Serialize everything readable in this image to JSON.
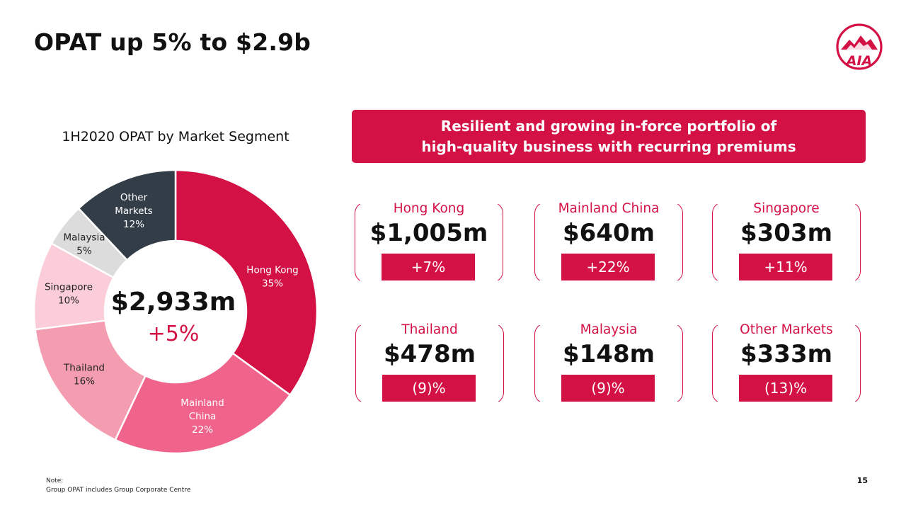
{
  "title": "OPAT up 5% to $2.9b",
  "brand": {
    "logo_text": "AIA",
    "color": "#d31145"
  },
  "chart_data": {
    "type": "pie",
    "title": "1H2020 OPAT by Market Segment",
    "center_total": "$2,933m",
    "center_growth": "+5%",
    "slices": [
      {
        "label": "Hong Kong",
        "label_lines": [
          "Hong Kong"
        ],
        "value": 35,
        "value_label": "35%",
        "color": "#d31145",
        "text_color": "#ffffff"
      },
      {
        "label": "Mainland China",
        "label_lines": [
          "Mainland",
          "China"
        ],
        "value": 22,
        "value_label": "22%",
        "color": "#f0648c",
        "text_color": "#ffffff"
      },
      {
        "label": "Thailand",
        "label_lines": [
          "Thailand"
        ],
        "value": 16,
        "value_label": "16%",
        "color": "#f59db0",
        "text_color": "#222222"
      },
      {
        "label": "Singapore",
        "label_lines": [
          "Singapore"
        ],
        "value": 10,
        "value_label": "10%",
        "color": "#fbcdd8",
        "text_color": "#222222"
      },
      {
        "label": "Malaysia",
        "label_lines": [
          "Malaysia"
        ],
        "value": 5,
        "value_label": "5%",
        "color": "#dcdcdc",
        "text_color": "#222222"
      },
      {
        "label": "Other Markets",
        "label_lines": [
          "Other",
          "Markets"
        ],
        "value": 12,
        "value_label": "12%",
        "color": "#333d47",
        "text_color": "#ffffff"
      }
    ]
  },
  "banner": {
    "line1": "Resilient and growing in-force portfolio of",
    "line2": "high-quality business with recurring premiums"
  },
  "markets": [
    {
      "name": "Hong Kong",
      "amount": "$1,005m",
      "growth": "+7%"
    },
    {
      "name": "Mainland China",
      "amount": "$640m",
      "growth": "+22%"
    },
    {
      "name": "Singapore",
      "amount": "$303m",
      "growth": "+11%"
    },
    {
      "name": "Thailand",
      "amount": "$478m",
      "growth": "(9)%"
    },
    {
      "name": "Malaysia",
      "amount": "$148m",
      "growth": "(9)%"
    },
    {
      "name": "Other Markets",
      "amount": "$333m",
      "growth": "(13)%"
    }
  ],
  "note": {
    "label": "Note:",
    "text": "Group OPAT includes Group Corporate Centre"
  },
  "page_number": "15"
}
